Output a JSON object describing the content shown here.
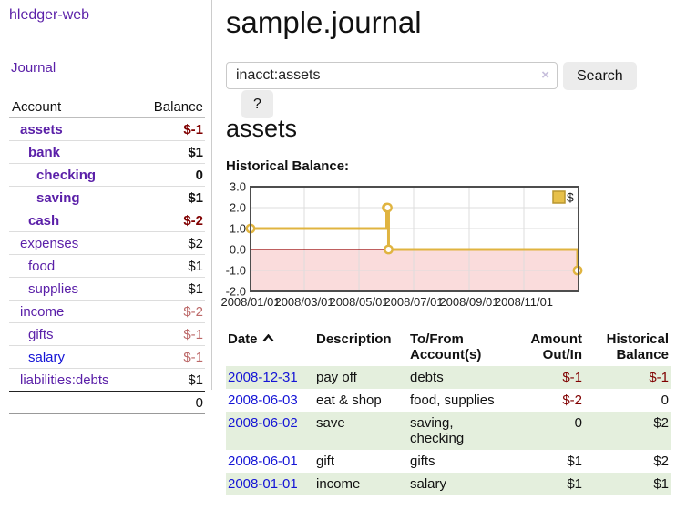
{
  "brand": "hledger-web",
  "nav": {
    "journal": "Journal"
  },
  "sidebar": {
    "header": {
      "account": "Account",
      "balance": "Balance"
    },
    "rows": [
      {
        "name": "assets",
        "depth": 1,
        "bold": true,
        "link_color": "purple",
        "balance": "$-1",
        "balance_style": "neg-strong"
      },
      {
        "name": "bank",
        "depth": 2,
        "bold": true,
        "link_color": "purple",
        "balance": "$1",
        "balance_style": "plain"
      },
      {
        "name": "checking",
        "depth": 3,
        "bold": true,
        "link_color": "purple",
        "balance": "0",
        "balance_style": "plain"
      },
      {
        "name": "saving",
        "depth": 3,
        "bold": true,
        "link_color": "purple",
        "balance": "$1",
        "balance_style": "plain"
      },
      {
        "name": "cash",
        "depth": 2,
        "bold": true,
        "link_color": "purple",
        "balance": "$-2",
        "balance_style": "neg-strong"
      },
      {
        "name": "expenses",
        "depth": 1,
        "bold": false,
        "link_color": "purple",
        "balance": "$2",
        "balance_style": "plain"
      },
      {
        "name": "food",
        "depth": 2,
        "bold": false,
        "link_color": "purple",
        "balance": "$1",
        "balance_style": "plain"
      },
      {
        "name": "supplies",
        "depth": 2,
        "bold": false,
        "link_color": "purple",
        "balance": "$1",
        "balance_style": "plain"
      },
      {
        "name": "income",
        "depth": 1,
        "bold": false,
        "link_color": "purple",
        "balance": "$-2",
        "balance_style": "neg-soft"
      },
      {
        "name": "gifts",
        "depth": 2,
        "bold": false,
        "link_color": "purple",
        "balance": "$-1",
        "balance_style": "neg-soft"
      },
      {
        "name": "salary",
        "depth": 2,
        "bold": false,
        "link_color": "blue",
        "balance": "$-1",
        "balance_style": "neg-soft"
      },
      {
        "name": "liabilities:debts",
        "depth": 1,
        "bold": false,
        "link_color": "purple",
        "balance": "$1",
        "balance_style": "plain"
      }
    ],
    "total": "0"
  },
  "header": {
    "title": "sample.journal"
  },
  "search": {
    "value": "inacct:assets",
    "clear_icon": "×",
    "search_button": "Search",
    "help_button": "?"
  },
  "account_page": {
    "title": "assets",
    "chart_title": "Historical Balance:"
  },
  "chart_data": {
    "type": "line",
    "step": true,
    "title": "Historical Balance:",
    "legend": [
      {
        "label": "$"
      }
    ],
    "series": [
      {
        "name": "$",
        "points": [
          {
            "date": "2008-01-01",
            "day": 0,
            "value": 1
          },
          {
            "date": "2008-06-01",
            "day": 152,
            "value": 2
          },
          {
            "date": "2008-06-02",
            "day": 153,
            "value": 2
          },
          {
            "date": "2008-06-03",
            "day": 154,
            "value": 0
          },
          {
            "date": "2008-12-31",
            "day": 365,
            "value": -1
          }
        ]
      }
    ],
    "xlim_days": [
      0,
      366
    ],
    "ylim": [
      -2,
      3
    ],
    "yticks": [
      {
        "value": 3,
        "label": "3.0"
      },
      {
        "value": 2,
        "label": "2.0"
      },
      {
        "value": 1,
        "label": "1.0"
      },
      {
        "value": 0,
        "label": "0.0"
      },
      {
        "value": -1,
        "label": "-1.0"
      },
      {
        "value": -2,
        "label": "-2.0"
      }
    ],
    "xticks": [
      {
        "day": 0,
        "label": "2008/01/01"
      },
      {
        "day": 60,
        "label": "2008/03/01"
      },
      {
        "day": 121,
        "label": "2008/05/01"
      },
      {
        "day": 182,
        "label": "2008/07/01"
      },
      {
        "day": 244,
        "label": "2008/09/01"
      },
      {
        "day": 305,
        "label": "2008/11/01"
      }
    ],
    "colors": {
      "line": "#e0b440",
      "marker_fill": "#ffffff",
      "negative_region": "#fadcdc",
      "zero_line": "#990000",
      "grid": "#dddddd",
      "border": "#4d4d4d",
      "legend_fill": "#e7c04a",
      "legend_border": "#b8962f",
      "tick_text": "#222222"
    }
  },
  "register": {
    "headers": {
      "date": "Date",
      "description": "Description",
      "account": "To/From Account(s)",
      "amount": "Amount Out/In",
      "balance": "Historical Balance"
    },
    "rows": [
      {
        "date": "2008-12-31",
        "description": "pay off",
        "accounts": "debts",
        "amount": "$-1",
        "amount_neg": true,
        "balance": "$-1",
        "balance_neg": true,
        "stripe": true
      },
      {
        "date": "2008-06-03",
        "description": "eat & shop",
        "accounts": "food, supplies",
        "amount": "$-2",
        "amount_neg": true,
        "balance": "0",
        "balance_neg": false,
        "stripe": false
      },
      {
        "date": "2008-06-02",
        "description": "save",
        "accounts": "saving, checking",
        "amount": "0",
        "amount_neg": false,
        "balance": "$2",
        "balance_neg": false,
        "stripe": true
      },
      {
        "date": "2008-06-01",
        "description": "gift",
        "accounts": "gifts",
        "amount": "$1",
        "amount_neg": false,
        "balance": "$2",
        "balance_neg": false,
        "stripe": false
      },
      {
        "date": "2008-01-01",
        "description": "income",
        "accounts": "salary",
        "amount": "$1",
        "amount_neg": false,
        "balance": "$1",
        "balance_neg": false,
        "stripe": true
      }
    ]
  }
}
